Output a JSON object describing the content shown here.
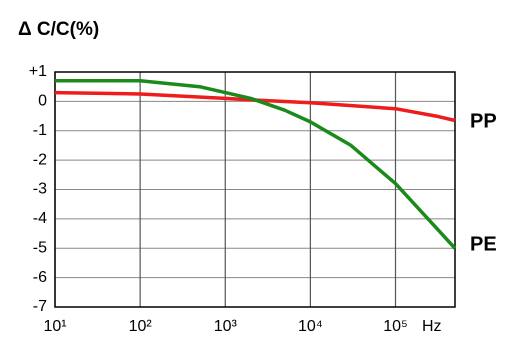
{
  "chart_data": {
    "type": "line",
    "title": "Δ C/C(%)",
    "x_label": "Hz",
    "log_x": true,
    "grid": true,
    "xlim": [
      10,
      500000
    ],
    "xticks": [
      {
        "value": 10,
        "label": "10¹"
      },
      {
        "value": 100,
        "label": "10²"
      },
      {
        "value": 1000,
        "label": "10³"
      },
      {
        "value": 10000,
        "label": "10⁴"
      },
      {
        "value": 100000,
        "label": "10⁵"
      }
    ],
    "ylim": [
      -7,
      1
    ],
    "yticks": [
      {
        "value": 1,
        "label": "+1"
      },
      0,
      -1,
      -2,
      -3,
      -4,
      -5,
      -6,
      -7
    ],
    "series": [
      {
        "name": "PP",
        "color": "#ee1c1c",
        "x": [
          10,
          100,
          1000,
          2000,
          10000,
          100000,
          300000,
          500000
        ],
        "values": [
          0.3,
          0.25,
          0.1,
          0.05,
          -0.05,
          -0.25,
          -0.5,
          -0.65
        ]
      },
      {
        "name": "PE",
        "color": "#1a8a1a",
        "x": [
          10,
          100,
          500,
          1000,
          2000,
          5000,
          10000,
          30000,
          100000,
          300000,
          500000
        ],
        "values": [
          0.7,
          0.7,
          0.5,
          0.3,
          0.1,
          -0.3,
          -0.7,
          -1.5,
          -2.8,
          -4.3,
          -5.0
        ]
      }
    ]
  }
}
